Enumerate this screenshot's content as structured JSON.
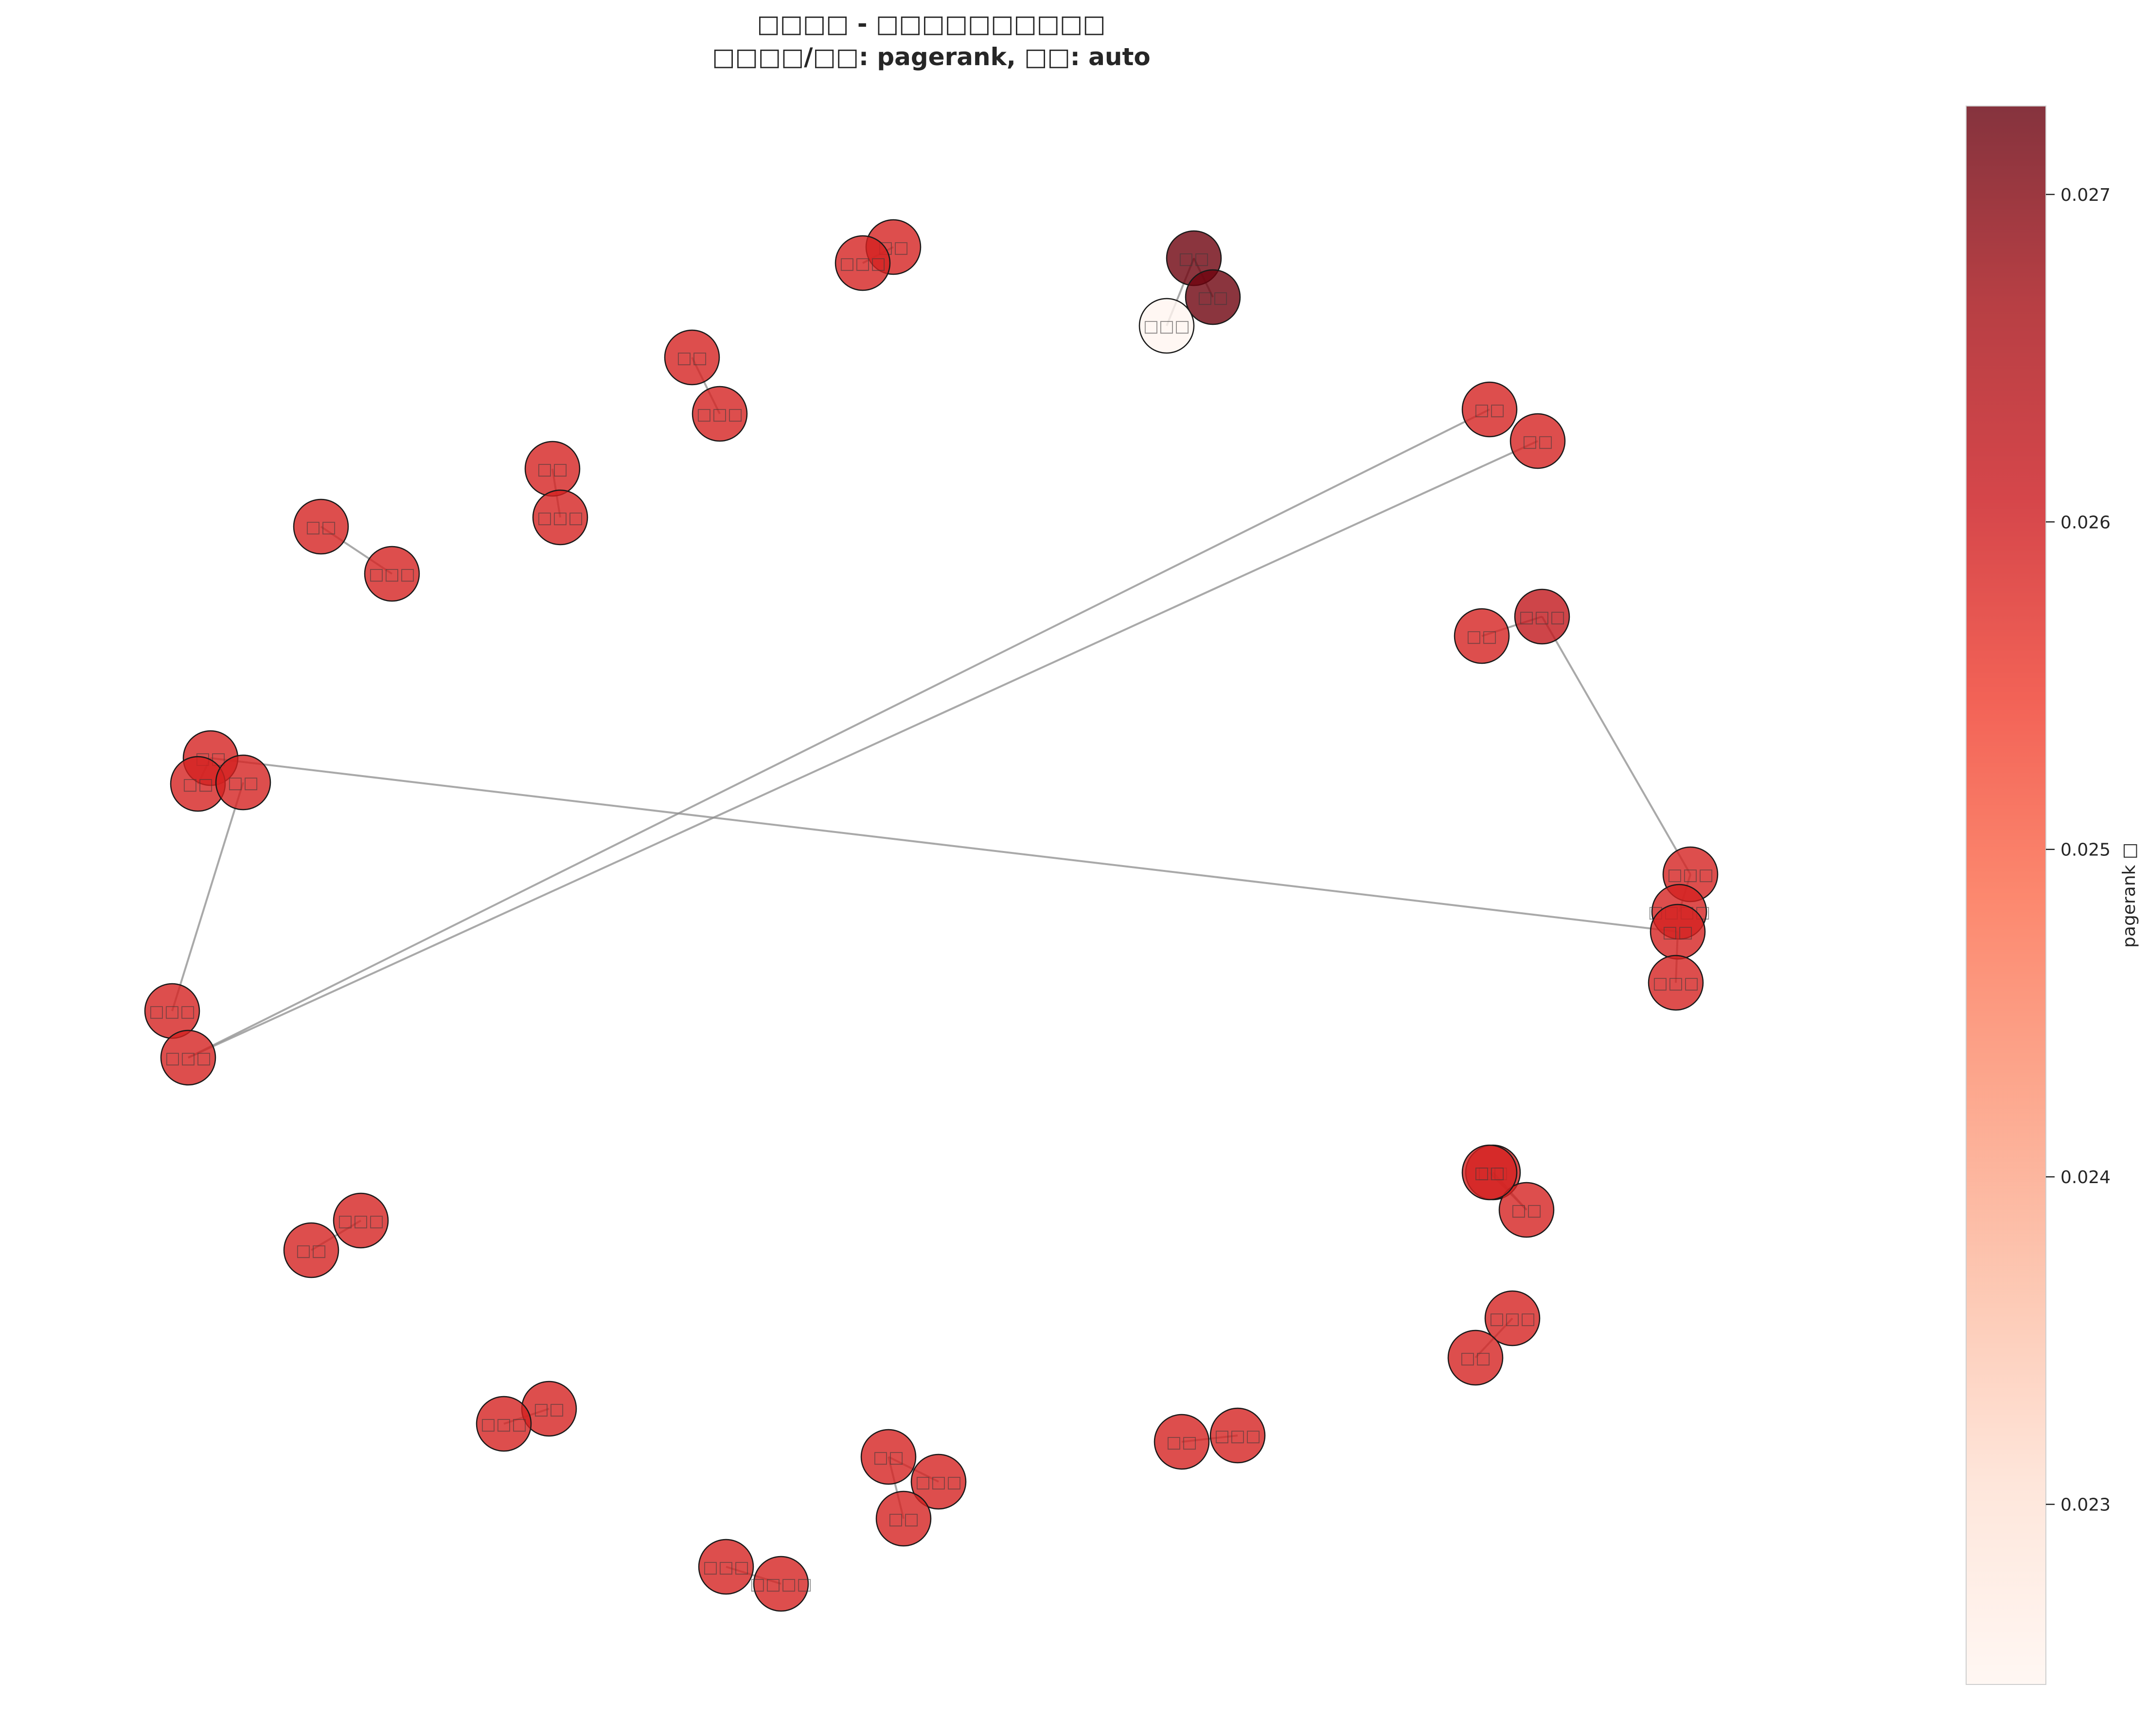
{
  "chart_data": {
    "type": "network",
    "title_line1": "□□□□ - □□□□□□□□□□",
    "title_line2": "□□□□/□□: pagerank, □□: auto",
    "colorbar": {
      "label": "pagerank □",
      "range": [
        0.02245,
        0.02727
      ],
      "ticks": [
        {
          "value": 0.023,
          "label": "0.023"
        },
        {
          "value": 0.024,
          "label": "0.024"
        },
        {
          "value": 0.025,
          "label": "0.025"
        },
        {
          "value": 0.026,
          "label": "0.026"
        },
        {
          "value": 0.027,
          "label": "0.027"
        }
      ],
      "colormap": "Reds"
    },
    "nodes": [
      {
        "id": "n1",
        "label": "□□",
        "pagerank": 0.0259
      },
      {
        "id": "n2",
        "label": "□□□",
        "pagerank": 0.0259
      },
      {
        "id": "n3",
        "label": "□□",
        "pagerank": 0.0272
      },
      {
        "id": "n4",
        "label": "□□",
        "pagerank": 0.0272
      },
      {
        "id": "n5",
        "label": "□□□",
        "pagerank": 0.02245
      },
      {
        "id": "n6",
        "label": "□□",
        "pagerank": 0.0259
      },
      {
        "id": "n7",
        "label": "□□□",
        "pagerank": 0.0259
      },
      {
        "id": "n8",
        "label": "□□",
        "pagerank": 0.0259
      },
      {
        "id": "n9",
        "label": "□□□",
        "pagerank": 0.0259
      },
      {
        "id": "n10",
        "label": "□□",
        "pagerank": 0.0259
      },
      {
        "id": "n11",
        "label": "□□□",
        "pagerank": 0.0259
      },
      {
        "id": "n12",
        "label": "□□",
        "pagerank": 0.0259
      },
      {
        "id": "n13",
        "label": "□□",
        "pagerank": 0.0259
      },
      {
        "id": "n14",
        "label": "□□",
        "pagerank": 0.0259
      },
      {
        "id": "n15",
        "label": "□□□",
        "pagerank": 0.0259
      },
      {
        "id": "n16",
        "label": "□□□",
        "pagerank": 0.0259
      },
      {
        "id": "n17",
        "label": "□□",
        "pagerank": 0.0259
      },
      {
        "id": "n18",
        "label": "□□",
        "pagerank": 0.0259
      },
      {
        "id": "n19",
        "label": "□□",
        "pagerank": 0.0259
      },
      {
        "id": "n20",
        "label": "□□□",
        "pagerank": 0.0262
      },
      {
        "id": "n21",
        "label": "□□□",
        "pagerank": 0.0259
      },
      {
        "id": "n22",
        "label": "□□□□",
        "pagerank": 0.0259
      },
      {
        "id": "n23",
        "label": "□□",
        "pagerank": 0.0259
      },
      {
        "id": "n24",
        "label": "□□□",
        "pagerank": 0.0259
      },
      {
        "id": "n25",
        "label": "□□",
        "pagerank": 0.0259
      },
      {
        "id": "n26",
        "label": "□□",
        "pagerank": 0.0259
      },
      {
        "id": "n27",
        "label": "□□",
        "pagerank": 0.0259
      },
      {
        "id": "n28",
        "label": "□□",
        "pagerank": 0.0259
      },
      {
        "id": "n29",
        "label": "□□□",
        "pagerank": 0.0259
      },
      {
        "id": "n30",
        "label": "□□",
        "pagerank": 0.0259
      },
      {
        "id": "n31",
        "label": "□□",
        "pagerank": 0.0259
      },
      {
        "id": "n32",
        "label": "□□□",
        "pagerank": 0.0259
      },
      {
        "id": "n33",
        "label": "□□□",
        "pagerank": 0.0259
      },
      {
        "id": "n34",
        "label": "□□□□",
        "pagerank": 0.0259
      },
      {
        "id": "n35",
        "label": "□□",
        "pagerank": 0.0259
      },
      {
        "id": "n36",
        "label": "□□□",
        "pagerank": 0.0259
      },
      {
        "id": "n37",
        "label": "□□",
        "pagerank": 0.0259
      },
      {
        "id": "n38",
        "label": "□□□",
        "pagerank": 0.0259
      },
      {
        "id": "n39",
        "label": "□□",
        "pagerank": 0.0259
      },
      {
        "id": "n40",
        "label": "□□□",
        "pagerank": 0.0259
      },
      {
        "id": "n41",
        "label": "□□",
        "pagerank": 0.0259
      },
      {
        "id": "n42",
        "label": "□□□",
        "pagerank": 0.0259
      },
      {
        "id": "n43",
        "label": "□□",
        "pagerank": 0.0259
      },
      {
        "id": "n44",
        "label": "□□□",
        "pagerank": 0.0259
      }
    ],
    "edges": [
      [
        "n1",
        "n2"
      ],
      [
        "n3",
        "n4"
      ],
      [
        "n3",
        "n5"
      ],
      [
        "n6",
        "n7"
      ],
      [
        "n8",
        "n9"
      ],
      [
        "n10",
        "n11"
      ],
      [
        "n12",
        "n13"
      ],
      [
        "n14",
        "n15"
      ],
      [
        "n16",
        "n17"
      ],
      [
        "n16",
        "n18"
      ],
      [
        "n19",
        "n20"
      ],
      [
        "n20",
        "n21"
      ],
      [
        "n21",
        "n22"
      ],
      [
        "n23",
        "n24"
      ],
      [
        "n25",
        "n26"
      ],
      [
        "n27",
        "n28"
      ],
      [
        "n29",
        "n30"
      ],
      [
        "n31",
        "n32"
      ],
      [
        "n33",
        "n34"
      ],
      [
        "n35",
        "n36"
      ],
      [
        "n35",
        "n37"
      ],
      [
        "n38",
        "n39"
      ],
      [
        "n40",
        "n41"
      ],
      [
        "n42",
        "n43"
      ],
      [
        "n12",
        "n44"
      ]
    ]
  }
}
